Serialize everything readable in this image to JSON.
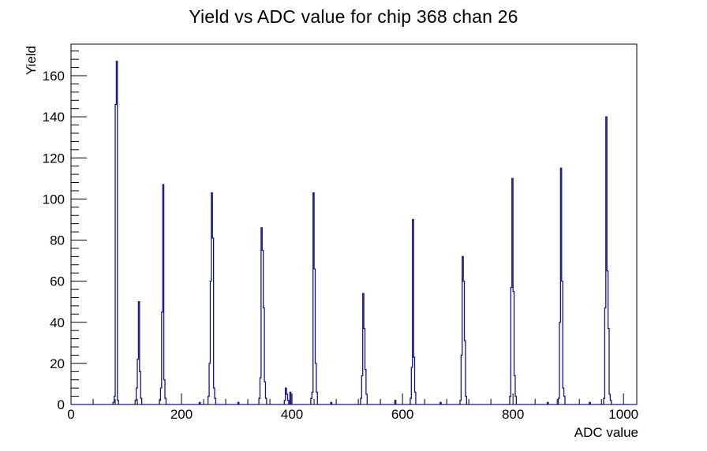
{
  "colors": {
    "background": "#ffffff",
    "axis": "#000000",
    "histogram": "#14148c",
    "text": "#000000"
  },
  "chart_data": {
    "type": "bar",
    "title": "Yield vs ADC value for chip 368 chan 26",
    "xlabel": "ADC value",
    "ylabel": "Yield",
    "xlim": [
      0,
      1024
    ],
    "ylim": [
      0,
      175.35
    ],
    "x_major_ticks": [
      0,
      200,
      400,
      600,
      800,
      1000
    ],
    "x_minor_step": 40,
    "y_major_ticks": [
      0,
      20,
      40,
      60,
      80,
      100,
      120,
      140,
      160
    ],
    "y_minor_step": 4,
    "grid": false,
    "legend": false,
    "bin_width": 2,
    "bins": [
      [
        76,
        1
      ],
      [
        78,
        4
      ],
      [
        80,
        146
      ],
      [
        82,
        167
      ],
      [
        84,
        2
      ],
      [
        116,
        2
      ],
      [
        118,
        8
      ],
      [
        120,
        22
      ],
      [
        122,
        50
      ],
      [
        124,
        16
      ],
      [
        126,
        3
      ],
      [
        160,
        2
      ],
      [
        162,
        8
      ],
      [
        164,
        45
      ],
      [
        166,
        107
      ],
      [
        168,
        12
      ],
      [
        170,
        3
      ],
      [
        232,
        1
      ],
      [
        248,
        4
      ],
      [
        250,
        20
      ],
      [
        252,
        60
      ],
      [
        254,
        103
      ],
      [
        256,
        81
      ],
      [
        258,
        8
      ],
      [
        260,
        3
      ],
      [
        302,
        1
      ],
      [
        340,
        3
      ],
      [
        342,
        13
      ],
      [
        344,
        86
      ],
      [
        346,
        75
      ],
      [
        348,
        47
      ],
      [
        350,
        11
      ],
      [
        352,
        3
      ],
      [
        386,
        2
      ],
      [
        388,
        8
      ],
      [
        390,
        5
      ],
      [
        392,
        2
      ],
      [
        396,
        6
      ],
      [
        434,
        3
      ],
      [
        436,
        6
      ],
      [
        438,
        103
      ],
      [
        440,
        66
      ],
      [
        442,
        20
      ],
      [
        444,
        6
      ],
      [
        470,
        1
      ],
      [
        524,
        3
      ],
      [
        526,
        14
      ],
      [
        528,
        54
      ],
      [
        530,
        37
      ],
      [
        532,
        17
      ],
      [
        534,
        5
      ],
      [
        586,
        2
      ],
      [
        614,
        3
      ],
      [
        616,
        18
      ],
      [
        618,
        90
      ],
      [
        620,
        23
      ],
      [
        622,
        6
      ],
      [
        668,
        1
      ],
      [
        704,
        2
      ],
      [
        706,
        24
      ],
      [
        708,
        72
      ],
      [
        710,
        60
      ],
      [
        712,
        31
      ],
      [
        714,
        4
      ],
      [
        794,
        4
      ],
      [
        796,
        57
      ],
      [
        798,
        110
      ],
      [
        800,
        55
      ],
      [
        802,
        14
      ],
      [
        804,
        4
      ],
      [
        862,
        1
      ],
      [
        882,
        3
      ],
      [
        884,
        40
      ],
      [
        886,
        115
      ],
      [
        888,
        60
      ],
      [
        890,
        8
      ],
      [
        892,
        4
      ],
      [
        938,
        1
      ],
      [
        964,
        3
      ],
      [
        966,
        47
      ],
      [
        968,
        140
      ],
      [
        970,
        65
      ],
      [
        972,
        37
      ],
      [
        974,
        5
      ],
      [
        976,
        2
      ]
    ]
  }
}
